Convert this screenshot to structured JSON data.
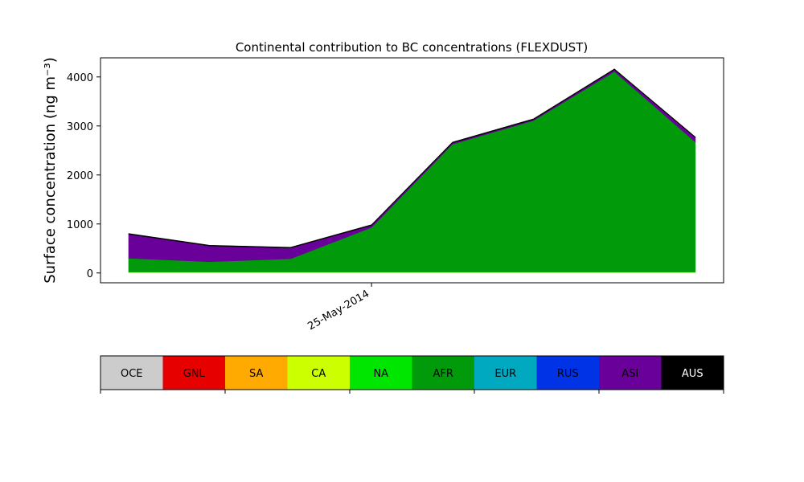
{
  "chart_data": {
    "type": "area",
    "stacked": true,
    "title": "Continental contribution to BC concentrations (FLEXDUST)",
    "ylabel": "Surface concentration (ng m⁻³)",
    "xlabel": "",
    "x": [
      "2014-05-22",
      "2014-05-23",
      "2014-05-24",
      "2014-05-25",
      "2014-05-26",
      "2014-05-27",
      "2014-05-28",
      "2014-05-29"
    ],
    "x_tick_labels": [
      {
        "x": "2014-05-25",
        "label": "25-May-2014"
      }
    ],
    "ylim": [
      -200,
      4390
    ],
    "yticks": [
      0,
      1000,
      2000,
      3000,
      4000
    ],
    "grid": false,
    "series": [
      {
        "name": "OCE",
        "color": "#cccccc",
        "values": [
          0,
          0,
          0,
          0,
          0,
          0,
          0,
          0
        ]
      },
      {
        "name": "GNL",
        "color": "#e60000",
        "values": [
          0,
          0,
          0,
          0,
          0,
          0,
          0,
          0
        ]
      },
      {
        "name": "SA",
        "color": "#ffaa00",
        "values": [
          0,
          0,
          0,
          0,
          0,
          0,
          0,
          0
        ]
      },
      {
        "name": "CA",
        "color": "#ccff00",
        "values": [
          20,
          20,
          20,
          20,
          20,
          20,
          20,
          20
        ]
      },
      {
        "name": "NA",
        "color": "#00e600",
        "values": [
          0,
          0,
          0,
          0,
          0,
          0,
          0,
          0
        ]
      },
      {
        "name": "AFR",
        "color": "#009a0a",
        "values": [
          280,
          210,
          270,
          910,
          2610,
          3090,
          4090,
          2650
        ]
      },
      {
        "name": "EUR",
        "color": "#00a8c0",
        "values": [
          0,
          0,
          0,
          0,
          0,
          0,
          0,
          0
        ]
      },
      {
        "name": "RUS",
        "color": "#0033e6",
        "values": [
          0,
          0,
          0,
          0,
          0,
          0,
          0,
          0
        ]
      },
      {
        "name": "ASI",
        "color": "#6a009a",
        "values": [
          490,
          320,
          220,
          40,
          25,
          20,
          40,
          90
        ]
      },
      {
        "name": "AUS",
        "color": "#000000",
        "values": [
          15,
          15,
          15,
          15,
          15,
          15,
          15,
          15
        ]
      }
    ],
    "legend": {
      "placement": "colorbar-below",
      "entries": [
        {
          "label": "OCE",
          "color": "#cccccc"
        },
        {
          "label": "GNL",
          "color": "#e60000"
        },
        {
          "label": "SA",
          "color": "#ffaa00"
        },
        {
          "label": "CA",
          "color": "#ccff00"
        },
        {
          "label": "NA",
          "color": "#00e600"
        },
        {
          "label": "AFR",
          "color": "#009a0a"
        },
        {
          "label": "EUR",
          "color": "#00a8c0"
        },
        {
          "label": "RUS",
          "color": "#0033e6"
        },
        {
          "label": "ASI",
          "color": "#6a009a"
        },
        {
          "label": "AUS",
          "color": "#ffffff"
        }
      ],
      "text_colors": [
        "#000000",
        "#000000",
        "#000000",
        "#000000",
        "#000000",
        "#000000",
        "#000000",
        "#000000",
        "#000000",
        "#ffffff"
      ],
      "swatch_colors": [
        "#cccccc",
        "#e60000",
        "#ffaa00",
        "#ccff00",
        "#00e600",
        "#009a0a",
        "#00a8c0",
        "#0033e6",
        "#6a009a",
        "#000000"
      ]
    }
  }
}
